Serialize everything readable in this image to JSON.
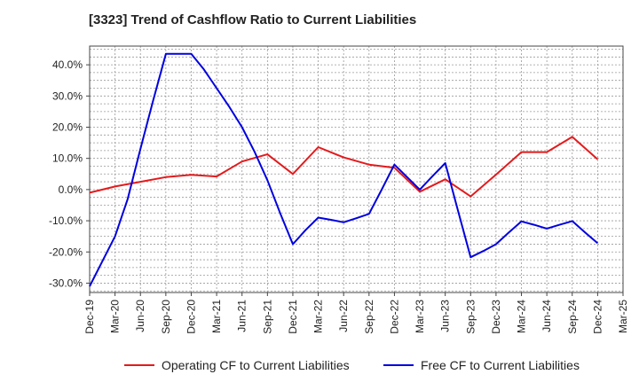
{
  "chart_data": {
    "type": "line",
    "title": "[3323]  Trend of Cashflow Ratio to Current Liabilities",
    "xlabel": "",
    "ylabel": "",
    "categories": [
      "Dec-19",
      "Mar-20",
      "Jun-20",
      "Sep-20",
      "Dec-20",
      "Mar-21",
      "Jun-21",
      "Sep-21",
      "Dec-21",
      "Mar-22",
      "Jun-22",
      "Sep-22",
      "Dec-22",
      "Mar-23",
      "Jun-23",
      "Sep-23",
      "Dec-23",
      "Mar-24",
      "Jun-24",
      "Sep-24",
      "Dec-24",
      "Mar-25"
    ],
    "ylim": [
      -33,
      46
    ],
    "yticks": [
      -30,
      -20,
      -10,
      0,
      10,
      20,
      30,
      40
    ],
    "ytick_labels": [
      "-30.0%",
      "-20.0%",
      "-10.0%",
      "0.0%",
      "10.0%",
      "20.0%",
      "30.0%",
      "40.0%"
    ],
    "grid": true,
    "legend_position": "bottom",
    "series": [
      {
        "name": "Operating CF to Current Liabilities",
        "color": "#e41a1c",
        "x": [
          0,
          1,
          2,
          3,
          4,
          5,
          6,
          7,
          8,
          9,
          10,
          11,
          12,
          13,
          14,
          15,
          16,
          17,
          18,
          19,
          20
        ],
        "values": [
          -1.0,
          1.0,
          2.5,
          4.0,
          4.7,
          4.2,
          9.0,
          11.3,
          5.0,
          13.6,
          10.3,
          8.0,
          7.0,
          -0.7,
          3.3,
          -2.2,
          4.8,
          12.0,
          12.0,
          16.9,
          9.7
        ]
      },
      {
        "name": "Free CF to Current Liabilities",
        "color": "#0000e0",
        "x": [
          0,
          0.5,
          1,
          1.5,
          2,
          2.5,
          3,
          3.5,
          4,
          4.5,
          5,
          5.5,
          6,
          6.5,
          7,
          7.5,
          8,
          8.5,
          9,
          9.5,
          10,
          10.5,
          11,
          11.5,
          12,
          12.5,
          13,
          13.5,
          14,
          14.5,
          15,
          15.5,
          16,
          16.5,
          17,
          17.5,
          18,
          18.5,
          19,
          19.5,
          20
        ],
        "values": [
          -31.0,
          -23.0,
          -15.0,
          -3.0,
          13.0,
          28.5,
          43.5,
          43.5,
          43.5,
          38.5,
          32.5,
          26.5,
          20.0,
          12.0,
          3.0,
          -7.5,
          -17.5,
          -13.0,
          -9.0,
          -9.7,
          -10.5,
          -9.2,
          -7.8,
          0.0,
          8.0,
          4.0,
          0.0,
          4.3,
          8.5,
          -6.7,
          -21.7,
          -19.7,
          -17.5,
          -13.8,
          -10.2,
          -11.3,
          -12.5,
          -11.3,
          -10.1,
          -13.7,
          -17.2
        ]
      }
    ]
  }
}
